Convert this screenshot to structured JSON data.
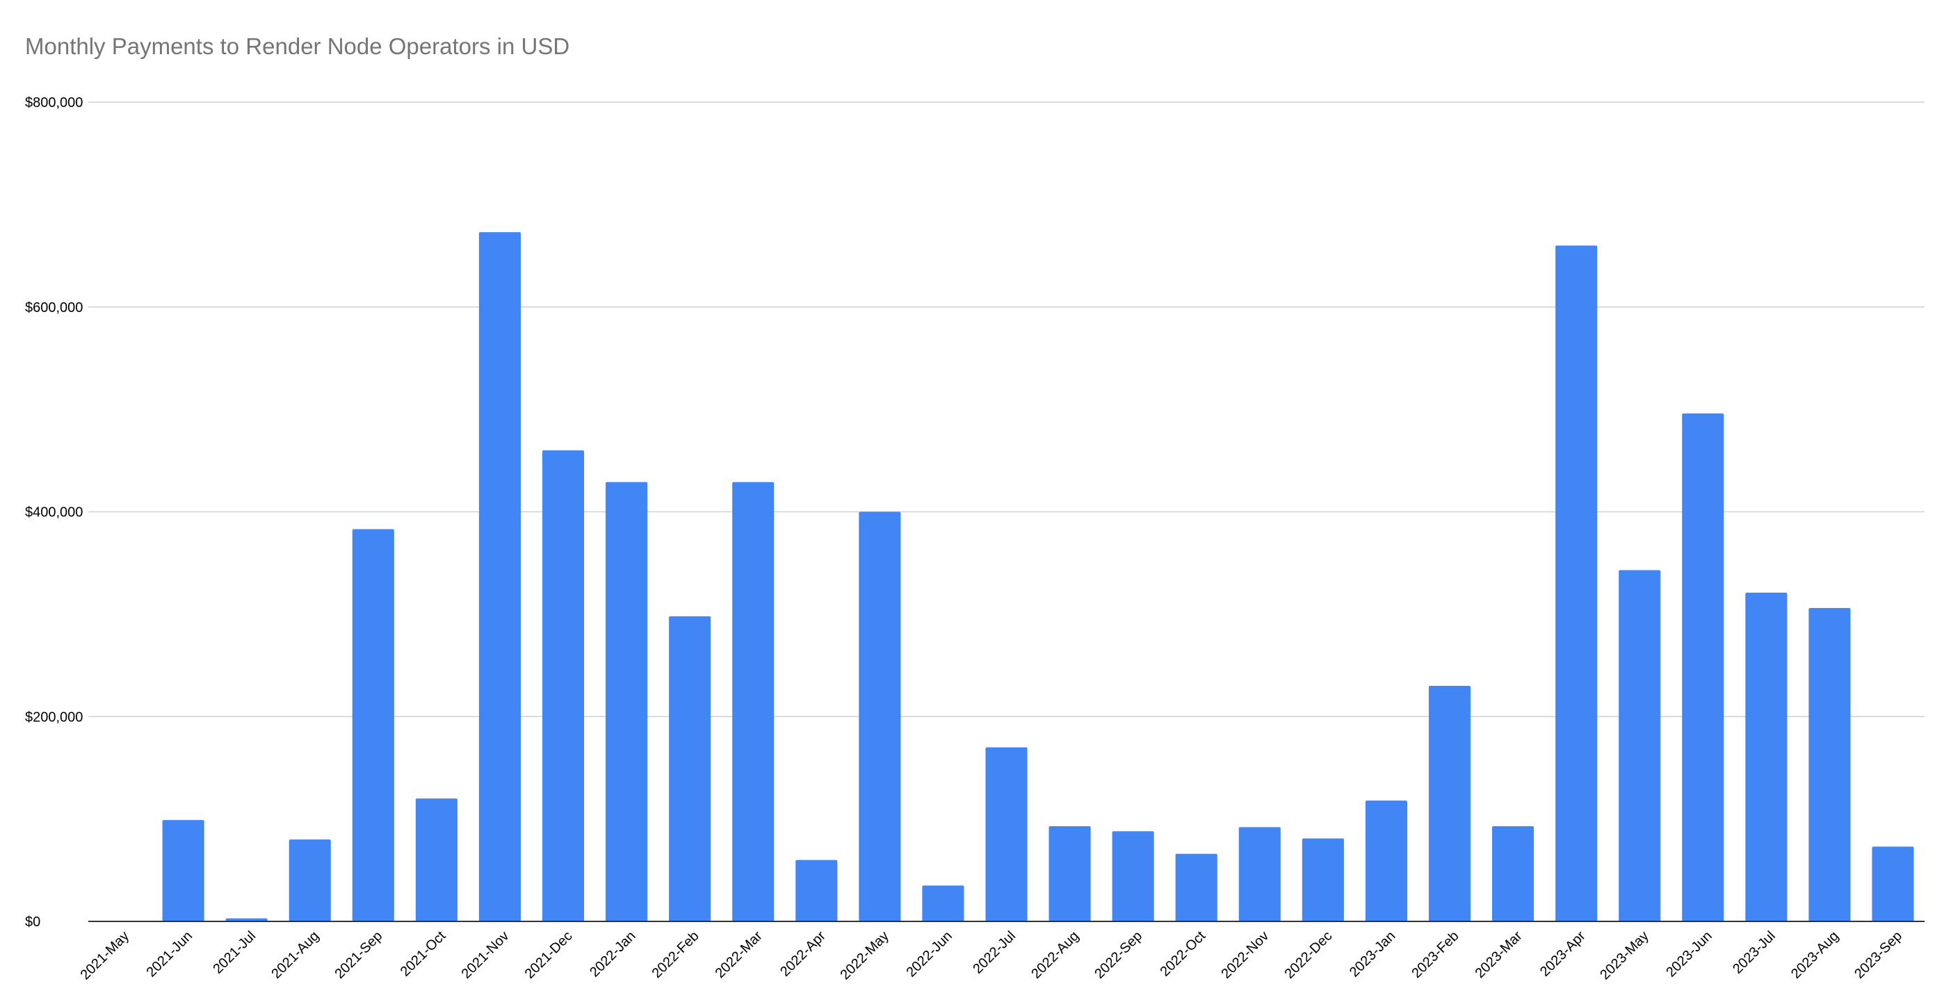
{
  "title": "Monthly Payments to Render Node Operators in USD",
  "chart_data": {
    "type": "bar",
    "title": "Monthly Payments to Render Node Operators in USD",
    "xlabel": "",
    "ylabel": "",
    "ylim": [
      0,
      800000
    ],
    "y_ticks": [
      0,
      200000,
      400000,
      600000,
      800000
    ],
    "y_tick_labels": [
      "$0",
      "$200,000",
      "$400,000",
      "$600,000",
      "$800,000"
    ],
    "grid": true,
    "legend": "none",
    "bar_color": "#4285F4",
    "grid_color": "#D0D0D0",
    "axis_color": "#333333",
    "categories": [
      "2021-May",
      "2021-Jun",
      "2021-Jul",
      "2021-Aug",
      "2021-Sep",
      "2021-Oct",
      "2021-Nov",
      "2021-Dec",
      "2022-Jan",
      "2022-Feb",
      "2022-Mar",
      "2022-Apr",
      "2022-May",
      "2022-Jun",
      "2022-Jul",
      "2022-Aug",
      "2022-Sep",
      "2022-Oct",
      "2022-Nov",
      "2022-Dec",
      "2023-Jan",
      "2023-Feb",
      "2023-Mar",
      "2023-Apr",
      "2023-May",
      "2023-Jun",
      "2023-Jul",
      "2023-Aug",
      "2023-Sep"
    ],
    "values": [
      0,
      99000,
      3000,
      80000,
      383000,
      120000,
      673000,
      460000,
      429000,
      298000,
      429000,
      60000,
      400000,
      35000,
      170000,
      93000,
      88000,
      66000,
      92000,
      81000,
      118000,
      230000,
      93000,
      660000,
      343000,
      496000,
      321000,
      306000,
      73000
    ]
  }
}
